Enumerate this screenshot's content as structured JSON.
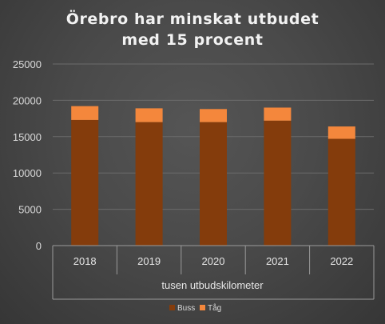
{
  "chart_data": {
    "type": "bar",
    "stacked": true,
    "title_lines": [
      "Örebro har minskat utbudet",
      "med 15 procent"
    ],
    "categories": [
      "2018",
      "2019",
      "2020",
      "2021",
      "2022"
    ],
    "xlabel": "tusen utbudskilometer",
    "ylabel": "",
    "ylim": [
      0,
      25000
    ],
    "yticks": [
      "0",
      "5000",
      "10000",
      "15000",
      "20000",
      "25000"
    ],
    "grid": true,
    "legend_position": "bottom",
    "series": [
      {
        "name": "Buss",
        "color": "#843c0c",
        "values": [
          17300,
          17000,
          17000,
          17200,
          14700
        ]
      },
      {
        "name": "Tåg",
        "color": "#f4873c",
        "values": [
          1900,
          1900,
          1800,
          1800,
          1700
        ]
      }
    ]
  }
}
